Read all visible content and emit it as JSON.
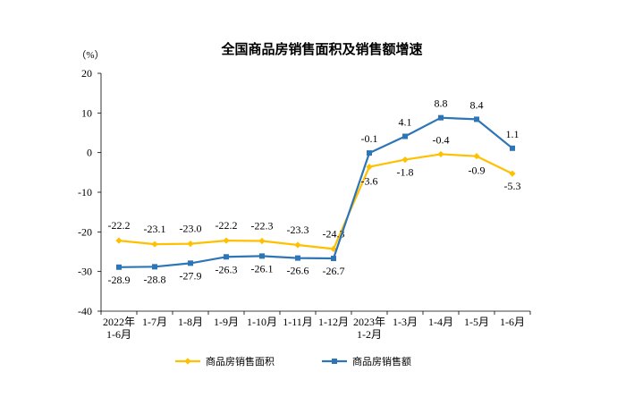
{
  "chart_data": {
    "type": "line",
    "title": "全国商品房销售面积及销售额增速",
    "yunit": "（%）",
    "ylim": [
      -40,
      20
    ],
    "yticks": [
      -40,
      -30,
      -20,
      -10,
      0,
      10,
      20
    ],
    "categories": [
      "2022年 1-6月",
      "1-7月",
      "1-8月",
      "1-9月",
      "1-10月",
      "1-11月",
      "1-12月",
      "2023年 1-2月",
      "1-3月",
      "1-4月",
      "1-5月",
      "1-6月"
    ],
    "category_lines": [
      [
        "2022年",
        "1-6月"
      ],
      [
        "1-7月"
      ],
      [
        "1-8月"
      ],
      [
        "1-9月"
      ],
      [
        "1-10月"
      ],
      [
        "1-11月"
      ],
      [
        "1-12月"
      ],
      [
        "2023年",
        "1-2月"
      ],
      [
        "1-3月"
      ],
      [
        "1-4月"
      ],
      [
        "1-5月"
      ],
      [
        "1-6月"
      ]
    ],
    "series": [
      {
        "name": "商品房销售面积",
        "color": "#FFC000",
        "marker": "diamond",
        "values": [
          -22.2,
          -23.1,
          -23.0,
          -22.2,
          -22.3,
          -23.3,
          -24.3,
          -3.6,
          -1.8,
          -0.4,
          -0.9,
          -5.3
        ],
        "labels": [
          "-22.2",
          "-23.1",
          "-23.0",
          "-22.2",
          "-22.3",
          "-23.3",
          "-24.3",
          "-3.6",
          "-1.8",
          "-0.4",
          "-0.9",
          "-5.3"
        ]
      },
      {
        "name": "商品房销售额",
        "color": "#2E75B6",
        "marker": "square",
        "values": [
          -28.9,
          -28.8,
          -27.9,
          -26.3,
          -26.1,
          -26.6,
          -26.7,
          -0.1,
          4.1,
          8.8,
          8.4,
          1.1
        ],
        "labels": [
          "-28.9",
          "-28.8",
          "-27.9",
          "-26.3",
          "-26.1",
          "-26.6",
          "-26.7",
          "-0.1",
          "4.1",
          "8.8",
          "8.4",
          "1.1"
        ]
      }
    ],
    "legend_position": "bottom",
    "grid": false
  }
}
